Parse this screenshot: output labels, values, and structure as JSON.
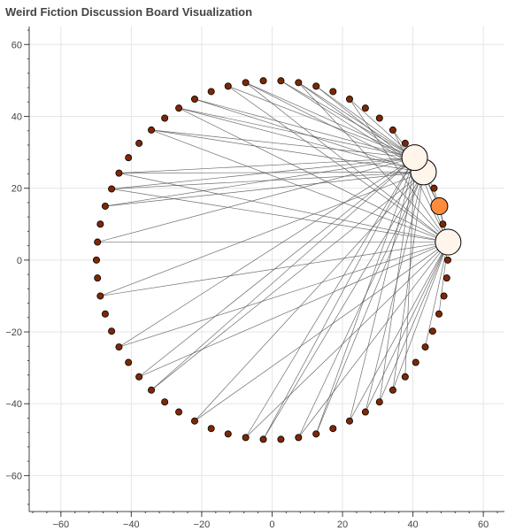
{
  "chart_data": {
    "type": "scatter",
    "title": "Weird Fiction Discussion Board Visualization",
    "xlabel": "",
    "ylabel": "",
    "xlim": [
      -69,
      66
    ],
    "ylim": [
      -70,
      65
    ],
    "x_ticks": [
      -60,
      -40,
      -20,
      0,
      20,
      40,
      60
    ],
    "y_ticks": [
      60,
      40,
      20,
      0,
      -20,
      -40,
      -60
    ],
    "grid": true,
    "legend": "none",
    "colors": {
      "small_node": "#7f2704",
      "medium_node": "#fd8d3c",
      "large_node": "#fff5eb",
      "edge": "#555555",
      "grid": "#e5e5e5",
      "axis": "#444444"
    },
    "nodes": [
      {
        "id": 0,
        "x": 50.0,
        "y": 5.0,
        "size": "large"
      },
      {
        "id": 1,
        "x": 47.5,
        "y": 15.0,
        "size": "medium"
      },
      {
        "id": 2,
        "x": 43.0,
        "y": 24.5,
        "size": "large"
      },
      {
        "id": 3,
        "x": 40.5,
        "y": 28.5,
        "size": "large"
      },
      {
        "id": 4,
        "x": 37.8,
        "y": 32.5,
        "size": "small"
      },
      {
        "id": 5,
        "x": 34.3,
        "y": 36.2,
        "size": "small"
      },
      {
        "id": 6,
        "x": 30.5,
        "y": 39.5,
        "size": "small"
      },
      {
        "id": 7,
        "x": 26.5,
        "y": 42.3,
        "size": "small"
      },
      {
        "id": 8,
        "x": 22.0,
        "y": 44.8,
        "size": "small"
      },
      {
        "id": 9,
        "x": 17.3,
        "y": 46.9,
        "size": "small"
      },
      {
        "id": 10,
        "x": 12.5,
        "y": 48.4,
        "size": "small"
      },
      {
        "id": 11,
        "x": 7.5,
        "y": 49.4,
        "size": "small"
      },
      {
        "id": 12,
        "x": 2.5,
        "y": 49.9,
        "size": "small"
      },
      {
        "id": 13,
        "x": -2.5,
        "y": 49.9,
        "size": "small"
      },
      {
        "id": 14,
        "x": -7.5,
        "y": 49.4,
        "size": "small"
      },
      {
        "id": 15,
        "x": -12.5,
        "y": 48.4,
        "size": "small"
      },
      {
        "id": 16,
        "x": -17.3,
        "y": 46.9,
        "size": "small"
      },
      {
        "id": 17,
        "x": -22.0,
        "y": 44.8,
        "size": "small"
      },
      {
        "id": 18,
        "x": -26.5,
        "y": 42.3,
        "size": "small"
      },
      {
        "id": 19,
        "x": -30.5,
        "y": 39.5,
        "size": "small"
      },
      {
        "id": 20,
        "x": -34.3,
        "y": 36.2,
        "size": "small"
      },
      {
        "id": 21,
        "x": -37.8,
        "y": 32.5,
        "size": "small"
      },
      {
        "id": 22,
        "x": -40.8,
        "y": 28.5,
        "size": "small"
      },
      {
        "id": 23,
        "x": -43.5,
        "y": 24.2,
        "size": "small"
      },
      {
        "id": 24,
        "x": -45.6,
        "y": 19.8,
        "size": "small"
      },
      {
        "id": 25,
        "x": -47.4,
        "y": 15.0,
        "size": "small"
      },
      {
        "id": 26,
        "x": -48.8,
        "y": 10.0,
        "size": "small"
      },
      {
        "id": 27,
        "x": -49.6,
        "y": 5.0,
        "size": "small"
      },
      {
        "id": 28,
        "x": -49.9,
        "y": 0.0,
        "size": "small"
      },
      {
        "id": 29,
        "x": -49.6,
        "y": -5.0,
        "size": "small"
      },
      {
        "id": 30,
        "x": -48.8,
        "y": -10.0,
        "size": "small"
      },
      {
        "id": 31,
        "x": -47.4,
        "y": -15.0,
        "size": "small"
      },
      {
        "id": 32,
        "x": -45.6,
        "y": -19.8,
        "size": "small"
      },
      {
        "id": 33,
        "x": -43.5,
        "y": -24.2,
        "size": "small"
      },
      {
        "id": 34,
        "x": -40.8,
        "y": -28.5,
        "size": "small"
      },
      {
        "id": 35,
        "x": -37.8,
        "y": -32.5,
        "size": "small"
      },
      {
        "id": 36,
        "x": -34.3,
        "y": -36.2,
        "size": "small"
      },
      {
        "id": 37,
        "x": -30.5,
        "y": -39.5,
        "size": "small"
      },
      {
        "id": 38,
        "x": -26.5,
        "y": -42.3,
        "size": "small"
      },
      {
        "id": 39,
        "x": -22.0,
        "y": -44.8,
        "size": "small"
      },
      {
        "id": 40,
        "x": -17.3,
        "y": -46.9,
        "size": "small"
      },
      {
        "id": 41,
        "x": -12.5,
        "y": -48.4,
        "size": "small"
      },
      {
        "id": 42,
        "x": -7.5,
        "y": -49.4,
        "size": "small"
      },
      {
        "id": 43,
        "x": -2.5,
        "y": -49.9,
        "size": "small"
      },
      {
        "id": 44,
        "x": 2.5,
        "y": -49.9,
        "size": "small"
      },
      {
        "id": 45,
        "x": 7.5,
        "y": -49.4,
        "size": "small"
      },
      {
        "id": 46,
        "x": 12.5,
        "y": -48.4,
        "size": "small"
      },
      {
        "id": 47,
        "x": 17.3,
        "y": -46.9,
        "size": "small"
      },
      {
        "id": 48,
        "x": 22.0,
        "y": -44.8,
        "size": "small"
      },
      {
        "id": 49,
        "x": 26.5,
        "y": -42.3,
        "size": "small"
      },
      {
        "id": 50,
        "x": 30.5,
        "y": -39.5,
        "size": "small"
      },
      {
        "id": 51,
        "x": 34.3,
        "y": -36.2,
        "size": "small"
      },
      {
        "id": 52,
        "x": 37.8,
        "y": -32.5,
        "size": "small"
      },
      {
        "id": 53,
        "x": 40.8,
        "y": -28.5,
        "size": "small"
      },
      {
        "id": 54,
        "x": 43.5,
        "y": -24.2,
        "size": "small"
      },
      {
        "id": 55,
        "x": 45.6,
        "y": -19.8,
        "size": "small"
      },
      {
        "id": 56,
        "x": 47.4,
        "y": -15.0,
        "size": "small"
      },
      {
        "id": 57,
        "x": 48.8,
        "y": -10.0,
        "size": "small"
      },
      {
        "id": 58,
        "x": 49.6,
        "y": -5.0,
        "size": "small"
      },
      {
        "id": 59,
        "x": 49.9,
        "y": 0.0,
        "size": "small"
      },
      {
        "id": 60,
        "x": 48.5,
        "y": 10.0,
        "size": "small"
      },
      {
        "id": 61,
        "x": 46.0,
        "y": 20.0,
        "size": "small"
      }
    ],
    "edges": [
      [
        3,
        20
      ],
      [
        2,
        20
      ],
      [
        0,
        20
      ],
      [
        3,
        18
      ],
      [
        2,
        18
      ],
      [
        0,
        18
      ],
      [
        3,
        17
      ],
      [
        2,
        17
      ],
      [
        3,
        15
      ],
      [
        0,
        15
      ],
      [
        3,
        14
      ],
      [
        2,
        14
      ],
      [
        0,
        14
      ],
      [
        3,
        12
      ],
      [
        2,
        12
      ],
      [
        3,
        11
      ],
      [
        2,
        11
      ],
      [
        0,
        11
      ],
      [
        3,
        10
      ],
      [
        2,
        10
      ],
      [
        3,
        8
      ],
      [
        0,
        8
      ],
      [
        2,
        5
      ],
      [
        0,
        5
      ],
      [
        3,
        4
      ],
      [
        2,
        4
      ],
      [
        3,
        23
      ],
      [
        2,
        23
      ],
      [
        0,
        23
      ],
      [
        3,
        24
      ],
      [
        2,
        24
      ],
      [
        0,
        24
      ],
      [
        3,
        25
      ],
      [
        2,
        25
      ],
      [
        3,
        27
      ],
      [
        0,
        27
      ],
      [
        2,
        30
      ],
      [
        0,
        30
      ],
      [
        3,
        33
      ],
      [
        0,
        33
      ],
      [
        3,
        35
      ],
      [
        0,
        35
      ],
      [
        3,
        36
      ],
      [
        2,
        36
      ],
      [
        2,
        39
      ],
      [
        0,
        39
      ],
      [
        3,
        42
      ],
      [
        0,
        42
      ],
      [
        3,
        43
      ],
      [
        2,
        43
      ],
      [
        2,
        45
      ],
      [
        0,
        45
      ],
      [
        3,
        46
      ],
      [
        2,
        46
      ],
      [
        3,
        48
      ],
      [
        0,
        48
      ],
      [
        2,
        49
      ],
      [
        0,
        49
      ],
      [
        3,
        50
      ],
      [
        0,
        50
      ],
      [
        2,
        51
      ],
      [
        0,
        51
      ],
      [
        3,
        52
      ],
      [
        0,
        54
      ],
      [
        0,
        56
      ],
      [
        3,
        1
      ],
      [
        2,
        1
      ],
      [
        0,
        1
      ],
      [
        2,
        61
      ],
      [
        0,
        61
      ],
      [
        3,
        0
      ]
    ]
  }
}
